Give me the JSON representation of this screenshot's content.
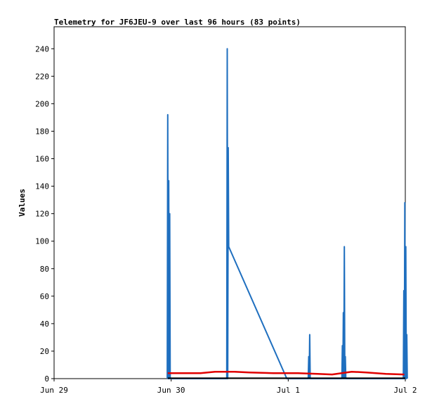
{
  "chart_data": {
    "type": "line",
    "title": "Telemetry for JF6JEU-9 over last 96 hours (83 points)",
    "xlabel": "",
    "ylabel": "Values",
    "x_range_hours": [
      0,
      72
    ],
    "ylim": [
      0,
      256
    ],
    "y_ticks": [
      0,
      20,
      40,
      60,
      80,
      100,
      120,
      140,
      160,
      180,
      200,
      220,
      240
    ],
    "x_ticks": [
      {
        "hour": 0,
        "label": "Jun 29"
      },
      {
        "hour": 24,
        "label": "Jun 30"
      },
      {
        "hour": 48,
        "label": "Jul 1"
      },
      {
        "hour": 72,
        "label": "Jul 2"
      }
    ],
    "grid": false,
    "legend": "none",
    "series": [
      {
        "color": "#1f6fbf",
        "points": [
          [
            23.2,
            0
          ],
          [
            23.3,
            192
          ],
          [
            23.4,
            0
          ],
          [
            23.5,
            144
          ],
          [
            23.6,
            0
          ],
          [
            23.7,
            120
          ],
          [
            23.8,
            0
          ],
          [
            35.4,
            0
          ],
          [
            35.5,
            240
          ],
          [
            35.6,
            0
          ],
          [
            35.7,
            168
          ],
          [
            35.8,
            96
          ],
          [
            47.7,
            0
          ],
          [
            52.1,
            0
          ],
          [
            52.2,
            16
          ],
          [
            52.3,
            0
          ],
          [
            52.4,
            32
          ],
          [
            52.5,
            0
          ],
          [
            59.0,
            0
          ],
          [
            59.1,
            24
          ],
          [
            59.2,
            0
          ],
          [
            59.3,
            48
          ],
          [
            59.4,
            0
          ],
          [
            59.5,
            96
          ],
          [
            59.6,
            0
          ],
          [
            59.7,
            16
          ],
          [
            59.8,
            0
          ],
          [
            71.6,
            0
          ],
          [
            71.7,
            64
          ],
          [
            71.8,
            0
          ],
          [
            71.9,
            128
          ],
          [
            72.0,
            0
          ],
          [
            72.1,
            96
          ],
          [
            72.2,
            0
          ],
          [
            72.3,
            32
          ],
          [
            72.4,
            0
          ]
        ]
      },
      {
        "color": "#e00000",
        "points": [
          [
            23.3,
            4
          ],
          [
            26,
            4
          ],
          [
            30,
            4
          ],
          [
            33,
            5
          ],
          [
            37,
            5
          ],
          [
            40,
            4.5
          ],
          [
            45,
            4
          ],
          [
            50,
            4
          ],
          [
            54,
            3.5
          ],
          [
            57,
            3
          ],
          [
            61,
            5
          ],
          [
            64,
            4.5
          ],
          [
            68,
            3.5
          ],
          [
            71.8,
            3
          ]
        ]
      },
      {
        "color": "#000000",
        "points": [
          [
            23.3,
            0.3
          ],
          [
            72.0,
            0.3
          ]
        ]
      }
    ]
  }
}
